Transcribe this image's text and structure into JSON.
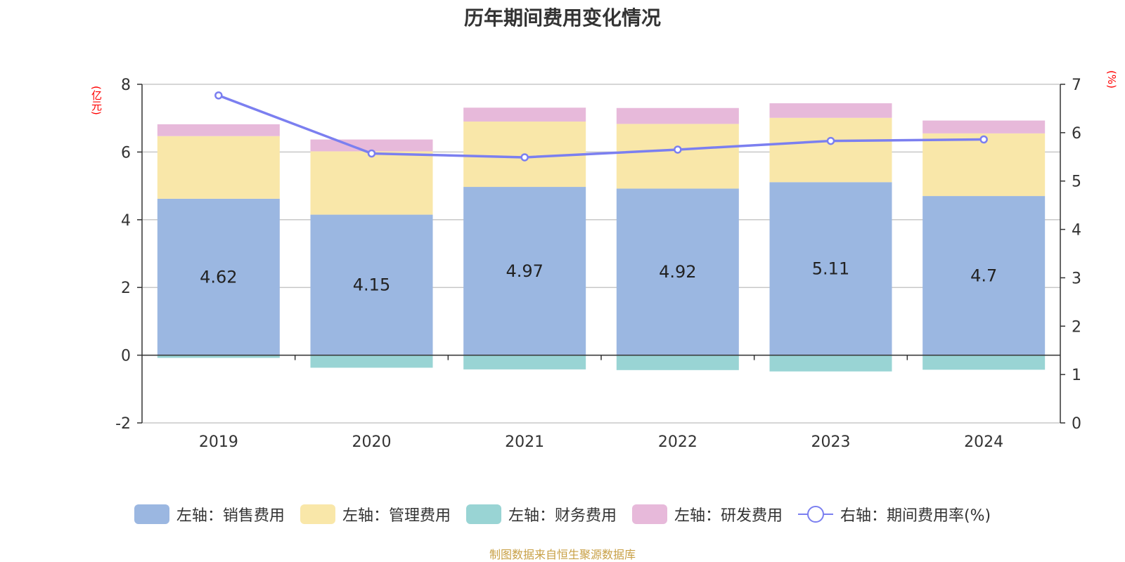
{
  "chart_data": {
    "type": "bar",
    "title": "历年期间费用变化情况",
    "left_unit": "(亿元)",
    "right_unit": "(%)",
    "categories": [
      "2019",
      "2020",
      "2021",
      "2022",
      "2023",
      "2024"
    ],
    "series": [
      {
        "name": "左轴：销售费用",
        "axis": "left",
        "stack": true,
        "color": "#9bb7e1",
        "values": [
          4.62,
          4.15,
          4.97,
          4.92,
          5.11,
          4.7
        ],
        "show_labels": true
      },
      {
        "name": "左轴：管理费用",
        "axis": "left",
        "stack": true,
        "color": "#f9e7a9",
        "values": [
          1.85,
          1.87,
          1.93,
          1.91,
          1.9,
          1.85
        ]
      },
      {
        "name": "左轴：财务费用",
        "axis": "left",
        "stack": true,
        "color": "#99d4d4",
        "values": [
          -0.08,
          -0.37,
          -0.42,
          -0.44,
          -0.48,
          -0.43
        ]
      },
      {
        "name": "左轴：研发费用",
        "axis": "left",
        "stack": true,
        "color": "#e7b9da",
        "values": [
          0.35,
          0.35,
          0.41,
          0.47,
          0.43,
          0.38
        ]
      },
      {
        "name": "右轴：期间费用率(%)",
        "axis": "right",
        "type": "line",
        "color": "#7b7ff0",
        "values": [
          6.77,
          5.57,
          5.49,
          5.65,
          5.83,
          5.86
        ]
      }
    ],
    "left_axis": {
      "min": -2,
      "max": 8,
      "ticks": [
        -2,
        0,
        2,
        4,
        6,
        8
      ]
    },
    "right_axis": {
      "min": 0,
      "max": 7,
      "ticks": [
        0,
        1,
        2,
        3,
        4,
        5,
        6,
        7
      ]
    },
    "grid": true,
    "legend_position": "bottom"
  },
  "source": "制图数据来自恒生聚源数据库"
}
